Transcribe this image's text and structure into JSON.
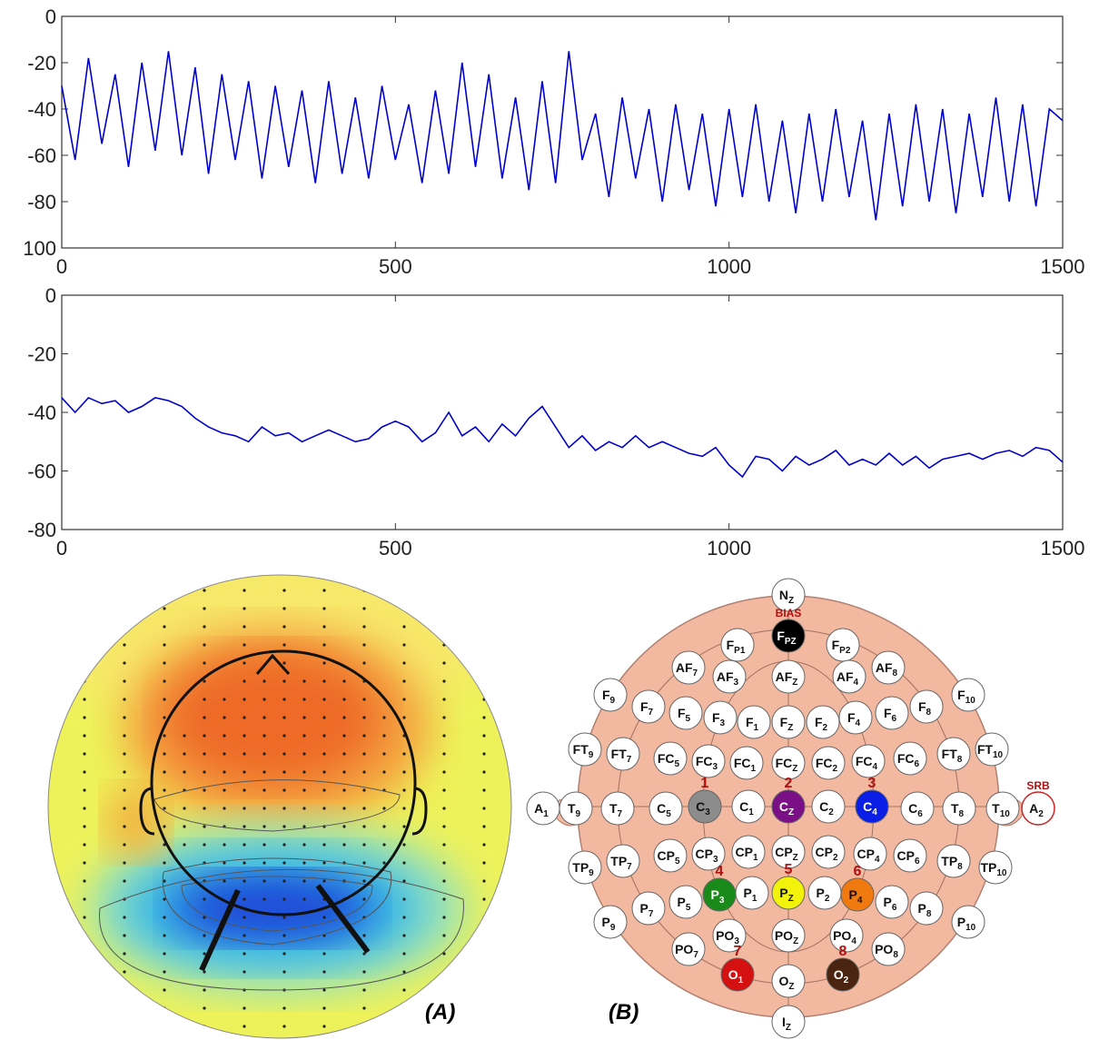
{
  "chart_data": [
    {
      "type": "line",
      "x": [
        0,
        20,
        40,
        60,
        80,
        100,
        120,
        140,
        160,
        180,
        200,
        220,
        240,
        260,
        280,
        300,
        320,
        340,
        360,
        380,
        400,
        420,
        440,
        460,
        480,
        500,
        520,
        540,
        560,
        580,
        600,
        620,
        640,
        660,
        680,
        700,
        720,
        740,
        760,
        780,
        800,
        820,
        840,
        860,
        880,
        900,
        920,
        940,
        960,
        980,
        1000,
        1020,
        1040,
        1060,
        1080,
        1100,
        1120,
        1140,
        1160,
        1180,
        1200,
        1220,
        1240,
        1260,
        1280,
        1300,
        1320,
        1340,
        1360,
        1380,
        1400,
        1420,
        1440,
        1460,
        1480,
        1500
      ],
      "series": [
        {
          "color": "#0000cc",
          "values": [
            -30,
            -62,
            -18,
            -55,
            -25,
            -65,
            -20,
            -58,
            -15,
            -60,
            -22,
            -68,
            -25,
            -62,
            -28,
            -70,
            -30,
            -65,
            -32,
            -72,
            -28,
            -68,
            -35,
            -70,
            -30,
            -62,
            -38,
            -72,
            -32,
            -68,
            -20,
            -65,
            -25,
            -70,
            -35,
            -75,
            -28,
            -72,
            -15,
            -62,
            -42,
            -78,
            -35,
            -70,
            -40,
            -80,
            -38,
            -75,
            -42,
            -82,
            -40,
            -78,
            -38,
            -80,
            -45,
            -85,
            -42,
            -80,
            -40,
            -78,
            -45,
            -88,
            -42,
            -82,
            -38,
            -80,
            -40,
            -85,
            -42,
            -78,
            -35,
            -80,
            -38,
            -82,
            -40,
            -45
          ]
        }
      ],
      "xlim": [
        0,
        1500
      ],
      "ylim": [
        -100,
        0
      ],
      "xticks": [
        0,
        500,
        1000,
        1500
      ],
      "yticks": [
        0,
        -20,
        -40,
        -60,
        -80,
        {
          "value": -100,
          "label": "100"
        }
      ]
    },
    {
      "type": "line",
      "x": [
        0,
        20,
        40,
        60,
        80,
        100,
        120,
        140,
        160,
        180,
        200,
        220,
        240,
        260,
        280,
        300,
        320,
        340,
        360,
        380,
        400,
        420,
        440,
        460,
        480,
        500,
        520,
        540,
        560,
        580,
        600,
        620,
        640,
        660,
        680,
        700,
        720,
        740,
        760,
        780,
        800,
        820,
        840,
        860,
        880,
        900,
        920,
        940,
        960,
        980,
        1000,
        1020,
        1040,
        1060,
        1080,
        1100,
        1120,
        1140,
        1160,
        1180,
        1200,
        1220,
        1240,
        1260,
        1280,
        1300,
        1320,
        1340,
        1360,
        1380,
        1400,
        1420,
        1440,
        1460,
        1480,
        1500
      ],
      "series": [
        {
          "color": "#0000cc",
          "values": [
            -35,
            -40,
            -35,
            -37,
            -36,
            -40,
            -38,
            -35,
            -36,
            -38,
            -42,
            -45,
            -47,
            -48,
            -50,
            -45,
            -48,
            -47,
            -50,
            -48,
            -46,
            -48,
            -50,
            -49,
            -45,
            -43,
            -45,
            -50,
            -47,
            -40,
            -48,
            -45,
            -50,
            -44,
            -48,
            -42,
            -38,
            -45,
            -52,
            -48,
            -53,
            -50,
            -52,
            -48,
            -52,
            -50,
            -52,
            -54,
            -55,
            -52,
            -58,
            -62,
            -55,
            -56,
            -60,
            -55,
            -58,
            -56,
            -53,
            -58,
            -56,
            -58,
            -54,
            -58,
            -55,
            -59,
            -56,
            -55,
            -54,
            -56,
            -54,
            -53,
            -55,
            -52,
            -53,
            -57
          ]
        }
      ],
      "xlim": [
        0,
        1500
      ],
      "ylim": [
        -80,
        0
      ],
      "xticks": [
        0,
        500,
        1000,
        1500
      ],
      "yticks": [
        0,
        -20,
        -40,
        -60,
        -80
      ]
    }
  ],
  "panels": {
    "a_label": "(A)",
    "b_label": "(B)"
  },
  "electrodes": [
    {
      "label": "N",
      "sub": "Z"
    },
    {
      "label": "F",
      "sub": "PZ",
      "color": "#000000",
      "tag": "BIAS"
    },
    {
      "label": "F",
      "sub": "P1"
    },
    {
      "label": "F",
      "sub": "P2"
    },
    {
      "label": "AF",
      "sub": "7"
    },
    {
      "label": "AF",
      "sub": "3"
    },
    {
      "label": "AF",
      "sub": "Z"
    },
    {
      "label": "AF",
      "sub": "4"
    },
    {
      "label": "AF",
      "sub": "8"
    },
    {
      "label": "F",
      "sub": "9"
    },
    {
      "label": "F",
      "sub": "7"
    },
    {
      "label": "F",
      "sub": "5"
    },
    {
      "label": "F",
      "sub": "3"
    },
    {
      "label": "F",
      "sub": "1"
    },
    {
      "label": "F",
      "sub": "Z"
    },
    {
      "label": "F",
      "sub": "2"
    },
    {
      "label": "F",
      "sub": "4"
    },
    {
      "label": "F",
      "sub": "6"
    },
    {
      "label": "F",
      "sub": "8"
    },
    {
      "label": "F",
      "sub": "10"
    },
    {
      "label": "FT",
      "sub": "9"
    },
    {
      "label": "FT",
      "sub": "7"
    },
    {
      "label": "FC",
      "sub": "5"
    },
    {
      "label": "FC",
      "sub": "3"
    },
    {
      "label": "FC",
      "sub": "1"
    },
    {
      "label": "FC",
      "sub": "Z"
    },
    {
      "label": "FC",
      "sub": "2"
    },
    {
      "label": "FC",
      "sub": "4"
    },
    {
      "label": "FC",
      "sub": "6"
    },
    {
      "label": "FT",
      "sub": "8"
    },
    {
      "label": "FT",
      "sub": "10"
    },
    {
      "label": "A",
      "sub": "1"
    },
    {
      "label": "T",
      "sub": "9"
    },
    {
      "label": "T",
      "sub": "7"
    },
    {
      "label": "C",
      "sub": "5"
    },
    {
      "label": "C",
      "sub": "3",
      "color": "#8c8c8c",
      "tag": "1"
    },
    {
      "label": "C",
      "sub": "1"
    },
    {
      "label": "C",
      "sub": "Z",
      "color": "#7a0f86",
      "tag": "2"
    },
    {
      "label": "C",
      "sub": "2"
    },
    {
      "label": "C",
      "sub": "4",
      "color": "#0a1ee6",
      "tag": "3"
    },
    {
      "label": "C",
      "sub": "6"
    },
    {
      "label": "T",
      "sub": "8"
    },
    {
      "label": "T",
      "sub": "10"
    },
    {
      "label": "A",
      "sub": "2",
      "outline": "#cc2222",
      "tag": "SRB"
    },
    {
      "label": "TP",
      "sub": "9"
    },
    {
      "label": "TP",
      "sub": "7"
    },
    {
      "label": "CP",
      "sub": "5"
    },
    {
      "label": "CP",
      "sub": "3"
    },
    {
      "label": "CP",
      "sub": "1"
    },
    {
      "label": "CP",
      "sub": "Z"
    },
    {
      "label": "CP",
      "sub": "2"
    },
    {
      "label": "CP",
      "sub": "4"
    },
    {
      "label": "CP",
      "sub": "6"
    },
    {
      "label": "TP",
      "sub": "8"
    },
    {
      "label": "TP",
      "sub": "10"
    },
    {
      "label": "P",
      "sub": "9"
    },
    {
      "label": "P",
      "sub": "7"
    },
    {
      "label": "P",
      "sub": "5"
    },
    {
      "label": "P",
      "sub": "3",
      "color": "#1a8a1a",
      "tag": "4"
    },
    {
      "label": "P",
      "sub": "1"
    },
    {
      "label": "P",
      "sub": "Z",
      "color": "#f2f20a",
      "tag": "5"
    },
    {
      "label": "P",
      "sub": "2"
    },
    {
      "label": "P",
      "sub": "4",
      "color": "#f07a10",
      "tag": "6"
    },
    {
      "label": "P",
      "sub": "6"
    },
    {
      "label": "P",
      "sub": "8"
    },
    {
      "label": "P",
      "sub": "10"
    },
    {
      "label": "PO",
      "sub": "7"
    },
    {
      "label": "PO",
      "sub": "3"
    },
    {
      "label": "PO",
      "sub": "Z"
    },
    {
      "label": "PO",
      "sub": "4"
    },
    {
      "label": "PO",
      "sub": "8"
    },
    {
      "label": "O",
      "sub": "1",
      "color": "#d41010",
      "tag": "7"
    },
    {
      "label": "O",
      "sub": "Z"
    },
    {
      "label": "O",
      "sub": "2",
      "color": "#4a2410",
      "tag": "8"
    },
    {
      "label": "I",
      "sub": "Z"
    }
  ]
}
